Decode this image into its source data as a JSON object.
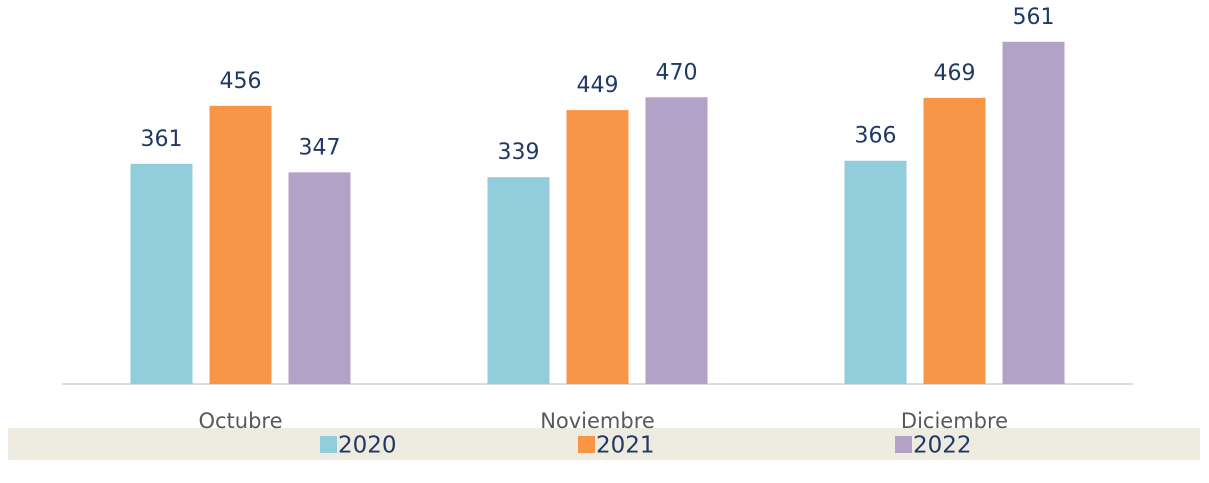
{
  "chart_data": {
    "type": "bar",
    "categories": [
      "Octubre",
      "Noviembre",
      "Diciembre"
    ],
    "series": [
      {
        "name": "2020",
        "color": "#92cddc",
        "values": [
          361,
          339,
          366
        ]
      },
      {
        "name": "2021",
        "color": "#f79646",
        "values": [
          456,
          449,
          469
        ]
      },
      {
        "name": "2022",
        "color": "#b2a2c7",
        "values": [
          347,
          470,
          561
        ]
      }
    ],
    "ylim": [
      0,
      600
    ],
    "legend": "bottom"
  }
}
